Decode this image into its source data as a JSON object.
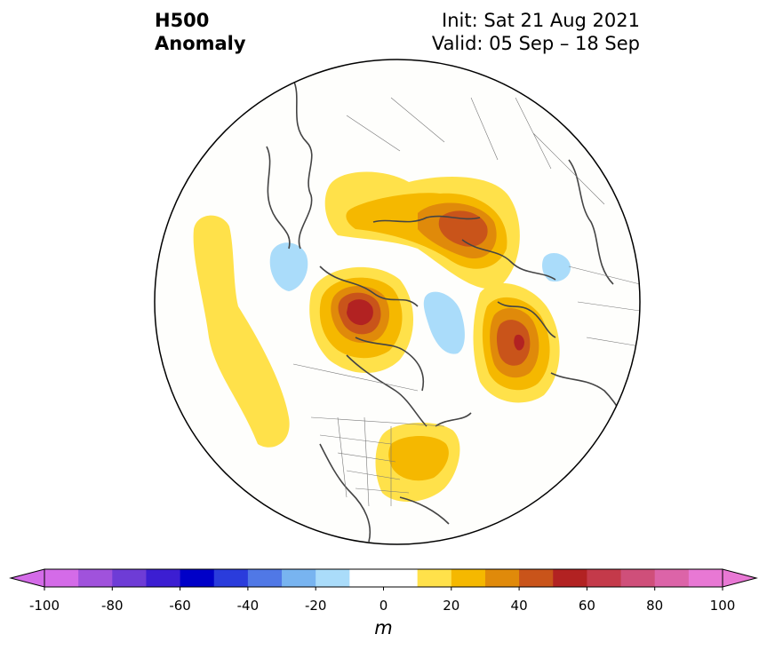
{
  "title": {
    "left_line1": "H500",
    "left_line2": "Anomaly",
    "right_line1": "Init: Sat 21 Aug 2021",
    "right_line2": "Valid: 05 Sep – 18 Sep"
  },
  "colorbar": {
    "unit_label": "m",
    "ticks": [
      "-100",
      "-80",
      "-60",
      "-40",
      "-20",
      "0",
      "20",
      "40",
      "60",
      "80",
      "100"
    ],
    "colors": [
      "#d46be8",
      "#a052dc",
      "#6e3cd6",
      "#3c1ed2",
      "#0000c8",
      "#2a3cdc",
      "#5078e6",
      "#78b4f0",
      "#aadcfa",
      "#ffffff",
      "#ffffff",
      "#ffe14a",
      "#f5b800",
      "#e08a0a",
      "#c9541a",
      "#b22222",
      "#c43a4a",
      "#cf4f7a",
      "#dc64a8",
      "#e878d4"
    ],
    "min_arrow_color": "#d46be8",
    "max_arrow_color": "#e878d4"
  },
  "map": {
    "projection": "north-polar-stereographic",
    "background_color": "#fefefc",
    "anomaly_colors": {
      "pos_10": "#ffe14a",
      "pos_20": "#f5b800",
      "pos_30": "#e08a0a",
      "pos_40": "#c9541a",
      "pos_50": "#b22222",
      "neg_10": "#aadcfa"
    }
  }
}
